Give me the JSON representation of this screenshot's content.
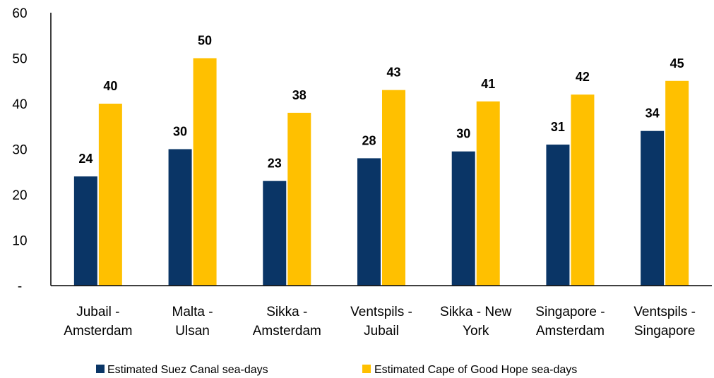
{
  "chart_data": {
    "type": "bar",
    "title": "",
    "xlabel": "",
    "ylabel": "",
    "ylim": [
      0,
      60
    ],
    "yticks": [
      0,
      10,
      20,
      30,
      40,
      50,
      60
    ],
    "ytick_labels": [
      "-",
      "10",
      "20",
      "30",
      "40",
      "50",
      "60"
    ],
    "grid": false,
    "legend": "bottom",
    "categories": [
      [
        "Jubail -",
        "Amsterdam"
      ],
      [
        "Malta -",
        "Ulsan"
      ],
      [
        "Sikka -",
        "Amsterdam"
      ],
      [
        "Ventspils -",
        "Jubail"
      ],
      [
        "Sikka - New",
        "York"
      ],
      [
        "Singapore -",
        "Amsterdam"
      ],
      [
        "Ventspils -",
        "Singapore"
      ]
    ],
    "series": [
      {
        "name": "Estimated Suez Canal sea-days",
        "color": "#0a3566",
        "values": [
          24,
          30,
          23,
          28,
          29.5,
          31,
          34
        ],
        "labels": [
          "24",
          "30",
          "23",
          "28",
          "30",
          "31",
          "34"
        ]
      },
      {
        "name": "Estimated Cape of Good Hope sea-days",
        "color": "#ffc000",
        "values": [
          40,
          50,
          38,
          43,
          40.5,
          42,
          45
        ],
        "labels": [
          "40",
          "50",
          "38",
          "43",
          "41",
          "42",
          "45"
        ]
      }
    ]
  }
}
